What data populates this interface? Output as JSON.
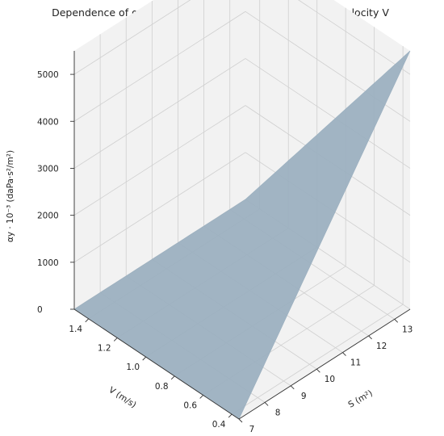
{
  "chart_data": {
    "type": "surface",
    "title": "Dependence of αy on cross-sectional area S and air flow velocity V",
    "xlabel": "S (m²)",
    "ylabel": "V (m/s)",
    "zlabel": "αy · 10⁻³ (daPa·s²/m²)",
    "xlim": [
      7,
      13.6
    ],
    "ylim": [
      0.35,
      1.5
    ],
    "zlim": [
      0,
      5500
    ],
    "x_ticks": [
      "7",
      "8",
      "9",
      "10",
      "11",
      "12",
      "13"
    ],
    "y_ticks": [
      "0.4",
      "0.6",
      "0.8",
      "1.0",
      "1.2",
      "1.4"
    ],
    "z_ticks": [
      "0",
      "1000",
      "2000",
      "3000",
      "4000",
      "5000"
    ],
    "surface": {
      "x_range": [
        7,
        13.6
      ],
      "y_range": [
        0.35,
        1.5
      ],
      "corner_values": [
        {
          "S": 7,
          "V": 0.35,
          "alpha_y": 0
        },
        {
          "S": 13.6,
          "V": 0.35,
          "alpha_y": 5500
        },
        {
          "S": 7,
          "V": 1.5,
          "alpha_y": 0
        },
        {
          "S": 13.6,
          "V": 1.5,
          "alpha_y": 0
        }
      ],
      "color": "#9aafbf"
    },
    "grid": true,
    "pane_color": "#f2f2f2",
    "grid_color": "#cfcfcf"
  }
}
